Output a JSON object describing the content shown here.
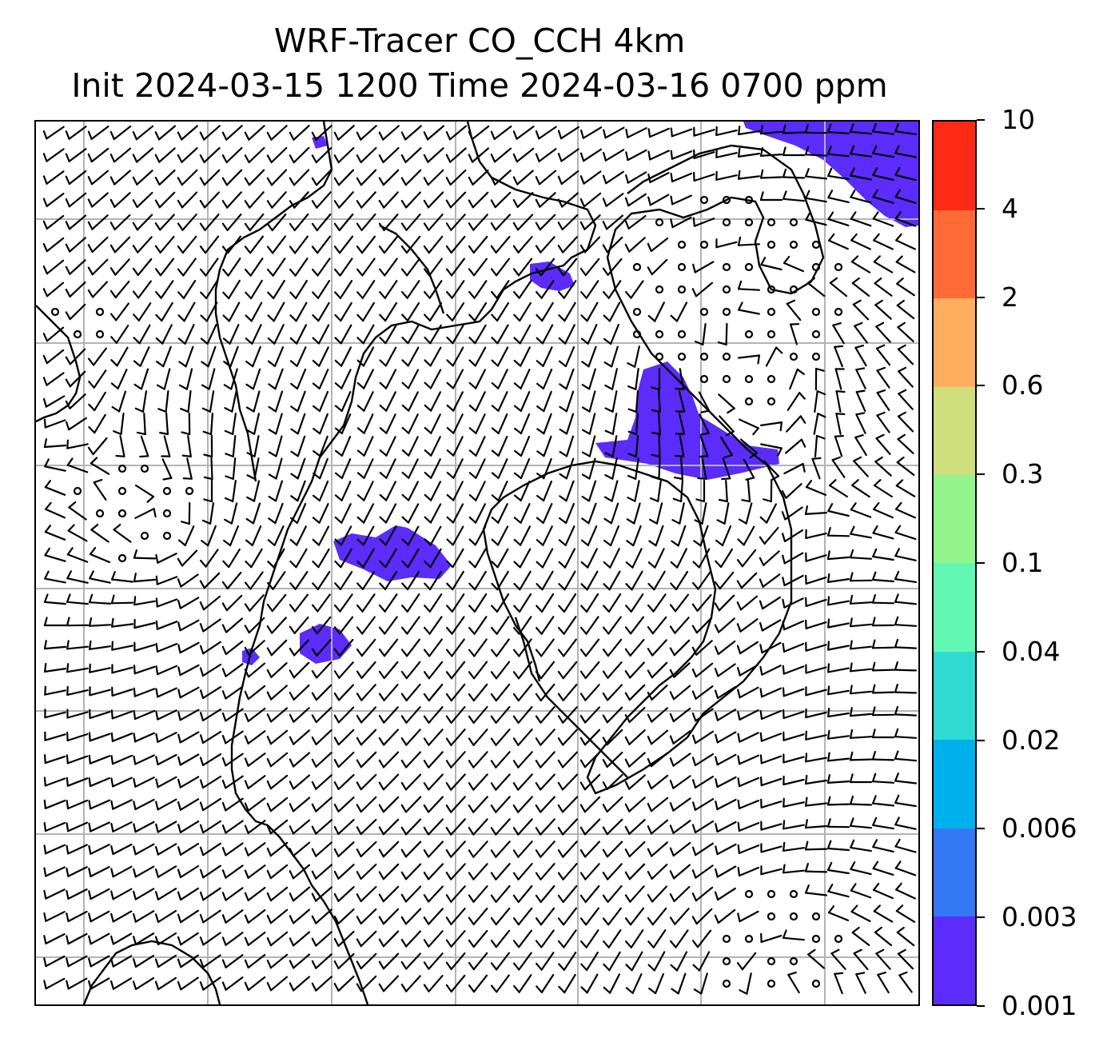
{
  "title": {
    "line1": "WRF-Tracer CO_CCH 4km",
    "line2": "Init 2024-03-15 1200 Time 2024-03-16 0700 ppm"
  },
  "map": {
    "type": "tracer concentration with wind barbs",
    "gridlines": true,
    "coastlines": true,
    "tracer_color": "#5b2cfb",
    "barb_color": "#000000",
    "gridline_color": "#b3b3b3"
  },
  "colorbar": {
    "orientation": "vertical",
    "placement": "right",
    "ticks": [
      "0.001",
      "0.003",
      "0.006",
      "0.02",
      "0.04",
      "0.1",
      "0.3",
      "0.6",
      "2",
      "4",
      "10"
    ],
    "colors": [
      "#5b2cfb",
      "#3478f4",
      "#00b0ec",
      "#2ddbd2",
      "#62f8b3",
      "#92f68c",
      "#cfdf7e",
      "#ffae5e",
      "#ff6b36",
      "#ff2a14"
    ]
  }
}
